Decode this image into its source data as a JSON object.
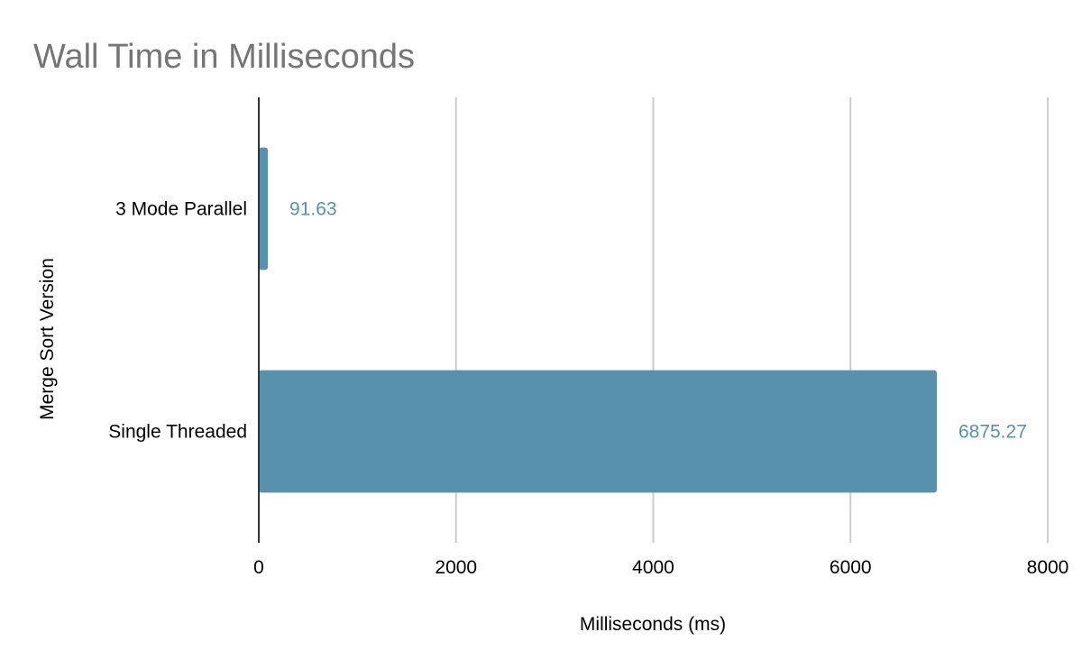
{
  "chart_data": {
    "type": "bar",
    "orientation": "horizontal",
    "title": "Wall Time in Milliseconds",
    "xlabel": "Milliseconds (ms)",
    "ylabel": "Merge Sort Version",
    "categories": [
      "3 Mode Parallel",
      "Single Threaded"
    ],
    "values": [
      91.63,
      6875.27
    ],
    "data_labels": [
      "91.63",
      "6875.27"
    ],
    "xlim": [
      0,
      8000
    ],
    "xticks": [
      0,
      2000,
      4000,
      6000,
      8000
    ],
    "grid": true,
    "legend": "none",
    "colors": {
      "bar": "#5891ad",
      "label": "#5891ad"
    }
  }
}
